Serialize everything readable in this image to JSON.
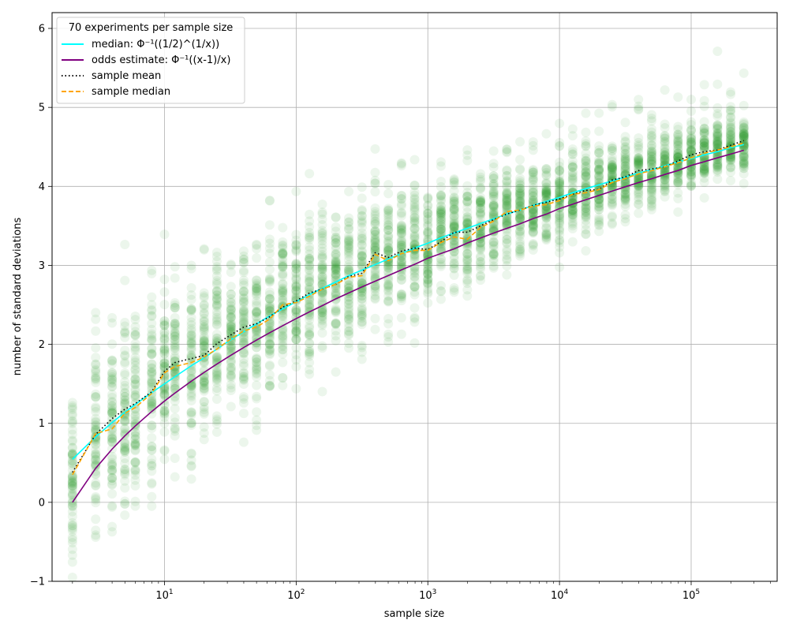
{
  "chart_data": {
    "type": "scatter",
    "xscale": "log",
    "xlim": [
      1.4,
      450000
    ],
    "ylim": [
      -1,
      6.2
    ],
    "xlabel": "sample size",
    "ylabel": "number of standard deviations",
    "grid": true,
    "x_ticks": [
      {
        "value": 10,
        "base": "10",
        "exp": "1"
      },
      {
        "value": 100,
        "base": "10",
        "exp": "2"
      },
      {
        "value": 1000,
        "base": "10",
        "exp": "3"
      },
      {
        "value": 10000,
        "base": "10",
        "exp": "4"
      },
      {
        "value": 100000,
        "base": "10",
        "exp": "5"
      }
    ],
    "y_ticks": [
      {
        "value": -1,
        "label": "−1"
      },
      {
        "value": 0,
        "label": "0"
      },
      {
        "value": 1,
        "label": "1"
      },
      {
        "value": 2,
        "label": "2"
      },
      {
        "value": 3,
        "label": "3"
      },
      {
        "value": 4,
        "label": "4"
      },
      {
        "value": 5,
        "label": "5"
      },
      {
        "value": 6,
        "label": "6"
      }
    ],
    "legend": {
      "title": "70 experiments per sample size",
      "placement": "upper-left",
      "entries": [
        {
          "label": "median: Φ⁻¹((1/2)^(1/x))",
          "color": "#00ffff",
          "style": "solid"
        },
        {
          "label": "odds estimate: Φ⁻¹((x-1)/x)",
          "color": "#800080",
          "style": "solid"
        },
        {
          "label": "sample mean",
          "color": "#000000",
          "style": "dotted"
        },
        {
          "label": "sample median",
          "color": "#ffa500",
          "style": "dashed"
        }
      ]
    },
    "experiments_per_size": 70,
    "scatter_color": "#2ca02c",
    "sample_sizes": [
      2,
      3,
      4,
      5,
      6,
      8,
      10,
      12,
      16,
      20,
      25,
      32,
      40,
      50,
      63,
      79,
      100,
      126,
      158,
      200,
      251,
      316,
      398,
      501,
      631,
      794,
      1000,
      1259,
      1585,
      1995,
      2512,
      3162,
      3981,
      5012,
      6310,
      7943,
      10000,
      12589,
      15849,
      19953,
      25119,
      31623,
      39811,
      50119,
      63096,
      79433,
      100000,
      125893,
      158489,
      199526,
      251189
    ],
    "series": [
      {
        "name": "median: Φ⁻¹((1/2)^(1/x))",
        "color": "#00ffff",
        "values": [
          0.545,
          0.83,
          1.01,
          1.14,
          1.24,
          1.39,
          1.5,
          1.59,
          1.73,
          1.83,
          1.94,
          2.06,
          2.16,
          2.26,
          2.36,
          2.45,
          2.54,
          2.63,
          2.71,
          2.79,
          2.87,
          2.94,
          3.01,
          3.08,
          3.15,
          3.22,
          3.28,
          3.35,
          3.41,
          3.47,
          3.53,
          3.59,
          3.65,
          3.7,
          3.76,
          3.81,
          3.86,
          3.92,
          3.97,
          4.02,
          4.07,
          4.12,
          4.17,
          4.21,
          4.26,
          4.31,
          4.35,
          4.4,
          4.44,
          4.49,
          4.53
        ]
      },
      {
        "name": "odds estimate: Φ⁻¹((x-1)/x)",
        "color": "#800080",
        "values": [
          0.0,
          0.431,
          0.674,
          0.842,
          0.967,
          1.15,
          1.282,
          1.383,
          1.534,
          1.645,
          1.751,
          1.863,
          1.96,
          2.054,
          2.148,
          2.236,
          2.326,
          2.411,
          2.49,
          2.576,
          2.651,
          2.727,
          2.8,
          2.871,
          2.943,
          3.013,
          3.09,
          3.15,
          3.209,
          3.283,
          3.346,
          3.409,
          3.469,
          3.526,
          3.592,
          3.648,
          3.719,
          3.775,
          3.831,
          3.886,
          3.941,
          3.995,
          4.048,
          4.097,
          4.151,
          4.201,
          4.265,
          4.313,
          4.362,
          4.409,
          4.457
        ]
      },
      {
        "name": "sample mean",
        "color": "#000000",
        "values": [
          0.38,
          0.86,
          1.06,
          1.18,
          1.25,
          1.4,
          1.66,
          1.77,
          1.82,
          1.86,
          2.01,
          2.12,
          2.22,
          2.26,
          2.35,
          2.47,
          2.55,
          2.65,
          2.7,
          2.76,
          2.86,
          2.9,
          3.16,
          3.1,
          3.18,
          3.22,
          3.2,
          3.3,
          3.42,
          3.42,
          3.5,
          3.58,
          3.65,
          3.7,
          3.76,
          3.8,
          3.84,
          3.9,
          3.95,
          3.96,
          4.08,
          4.12,
          4.2,
          4.22,
          4.25,
          4.32,
          4.4,
          4.44,
          4.46,
          4.52,
          4.58
        ]
      },
      {
        "name": "sample median",
        "color": "#ffa500",
        "values": [
          0.35,
          0.87,
          0.93,
          1.13,
          1.2,
          1.38,
          1.64,
          1.72,
          1.77,
          1.84,
          1.94,
          2.07,
          2.17,
          2.22,
          2.32,
          2.5,
          2.53,
          2.61,
          2.7,
          2.76,
          2.85,
          2.87,
          3.14,
          3.06,
          3.15,
          3.19,
          3.19,
          3.29,
          3.36,
          3.33,
          3.48,
          3.56,
          3.68,
          3.7,
          3.75,
          3.77,
          3.82,
          3.9,
          3.92,
          3.96,
          4.05,
          4.1,
          4.16,
          4.2,
          4.25,
          4.3,
          4.36,
          4.42,
          4.46,
          4.5,
          4.55
        ]
      }
    ]
  }
}
